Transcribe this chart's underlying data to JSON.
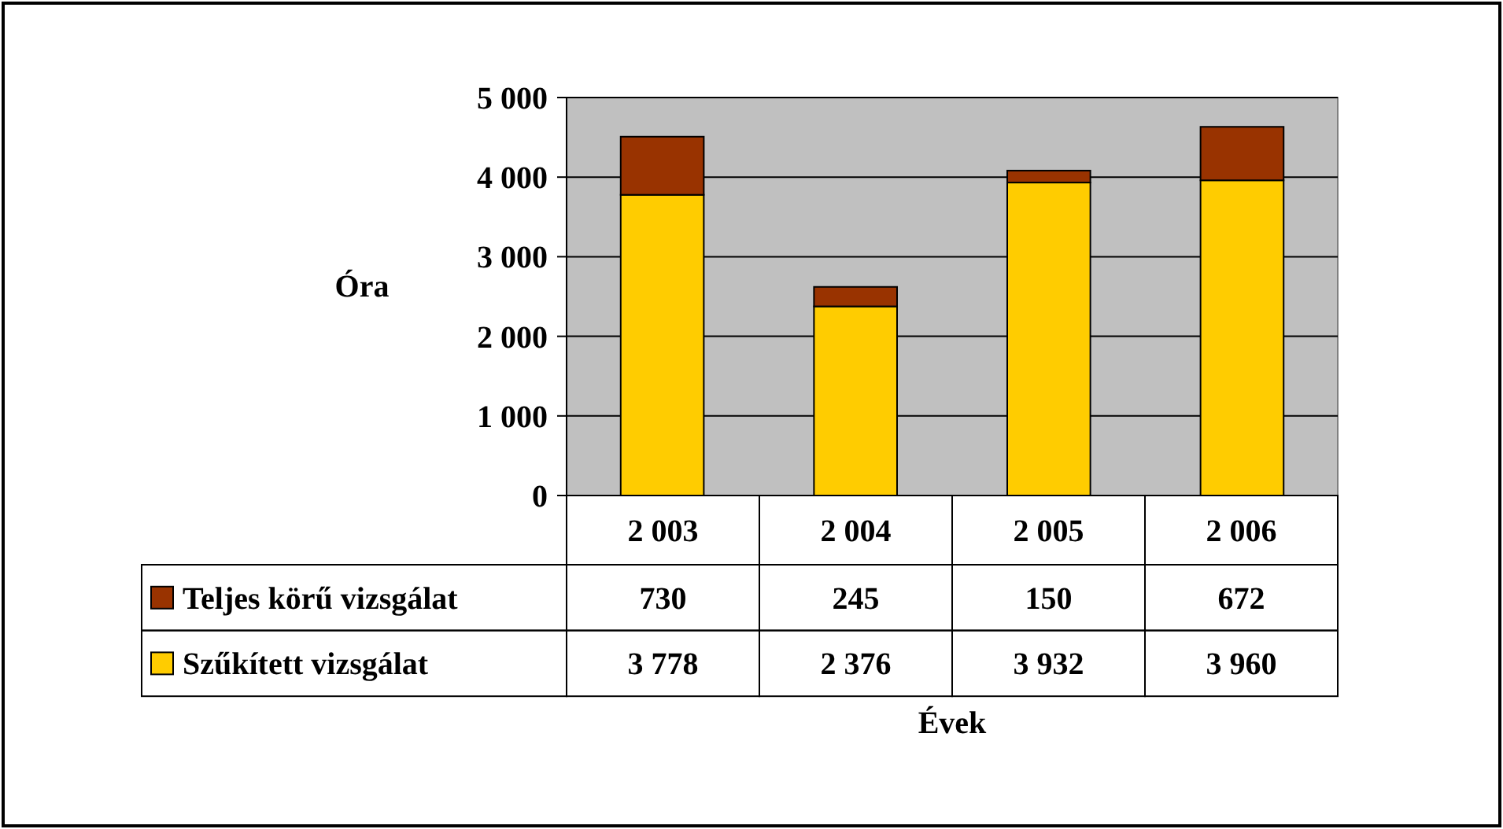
{
  "chart_data": {
    "type": "bar",
    "stacked": true,
    "ylabel": "Óra",
    "xlabel": "Évek",
    "categories": [
      "2 003",
      "2 004",
      "2 005",
      "2 006"
    ],
    "series": [
      {
        "name": "Szűkített vizsgálat",
        "color": "#ffcc00",
        "values": [
          3778,
          2376,
          3932,
          3960
        ]
      },
      {
        "name": "Teljes körű vizsgálat",
        "color": "#993300",
        "values": [
          730,
          245,
          150,
          672
        ]
      }
    ],
    "ylim": [
      0,
      5000
    ],
    "yticks": [
      0,
      {
        "value": 1000,
        "label": "1 000"
      },
      {
        "value": 2000,
        "label": "2 000"
      },
      {
        "value": 3000,
        "label": "3 000"
      },
      {
        "value": 4000,
        "label": "4 000"
      },
      {
        "value": 5000,
        "label": "5 000"
      }
    ],
    "grid": "y",
    "legend": "bottom left",
    "data_labels": true
  }
}
